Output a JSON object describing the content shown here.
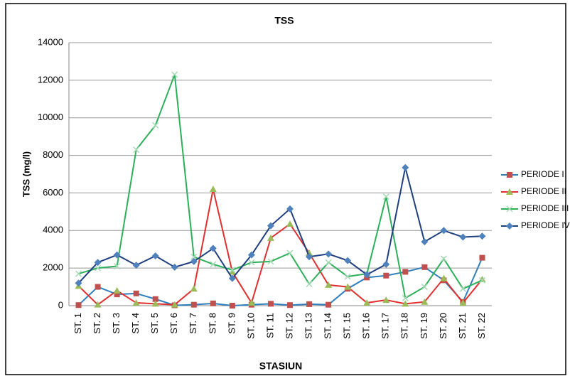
{
  "chart_data": {
    "type": "line",
    "title": "TSS",
    "y_label": "TSS (mg/l)",
    "x_label": "STASIUN",
    "categories": [
      "ST. 1",
      "ST. 2",
      "ST. 3",
      "ST. 4",
      "ST. 5",
      "ST. 6",
      "ST. 7",
      "ST. 8",
      "ST. 9",
      "ST. 10",
      "ST. 11",
      "ST. 12",
      "ST. 13",
      "ST. 14",
      "ST. 15",
      "ST. 16",
      "ST. 17",
      "ST. 18",
      "ST. 19",
      "ST. 20",
      "ST. 21",
      "ST. 22"
    ],
    "series": [
      {
        "name": "PERIODE I",
        "color": "#2f7fbf",
        "marker": "square",
        "marker_color": "#c0504d",
        "values": [
          30,
          1000,
          600,
          650,
          350,
          20,
          50,
          120,
          0,
          50,
          100,
          30,
          80,
          50,
          900,
          1500,
          1600,
          1800,
          2050,
          1350,
          200,
          2550
        ]
      },
      {
        "name": "PERIODE II",
        "color": "#e03030",
        "marker": "triangle",
        "marker_color": "#9bbb59",
        "values": [
          1050,
          50,
          800,
          150,
          100,
          50,
          900,
          6200,
          1800,
          150,
          3600,
          4350,
          2800,
          1100,
          1000,
          150,
          300,
          100,
          200,
          1450,
          150,
          1400
        ]
      },
      {
        "name": "PERIODE III",
        "color": "#2db05a",
        "marker": "x",
        "marker_color": "#a6d9b5",
        "values": [
          1700,
          2000,
          2100,
          8300,
          9600,
          12300,
          2600,
          2200,
          1900,
          2300,
          2350,
          2800,
          1150,
          2300,
          1550,
          1700,
          5800,
          400,
          1000,
          2500,
          900,
          1350
        ]
      },
      {
        "name": "PERIODE IV",
        "color": "#1f3f7f",
        "marker": "diamond",
        "marker_color": "#4f81bd",
        "values": [
          1200,
          2300,
          2700,
          2150,
          2650,
          2050,
          2350,
          3050,
          1450,
          2700,
          4250,
          5150,
          2600,
          2750,
          2400,
          1650,
          2200,
          7350,
          3400,
          4000,
          3650,
          3700
        ]
      }
    ],
    "ylim": [
      0,
      14000
    ],
    "yticks": [
      0,
      2000,
      4000,
      6000,
      8000,
      10000,
      12000,
      14000
    ],
    "grid": true,
    "legend": "right"
  }
}
